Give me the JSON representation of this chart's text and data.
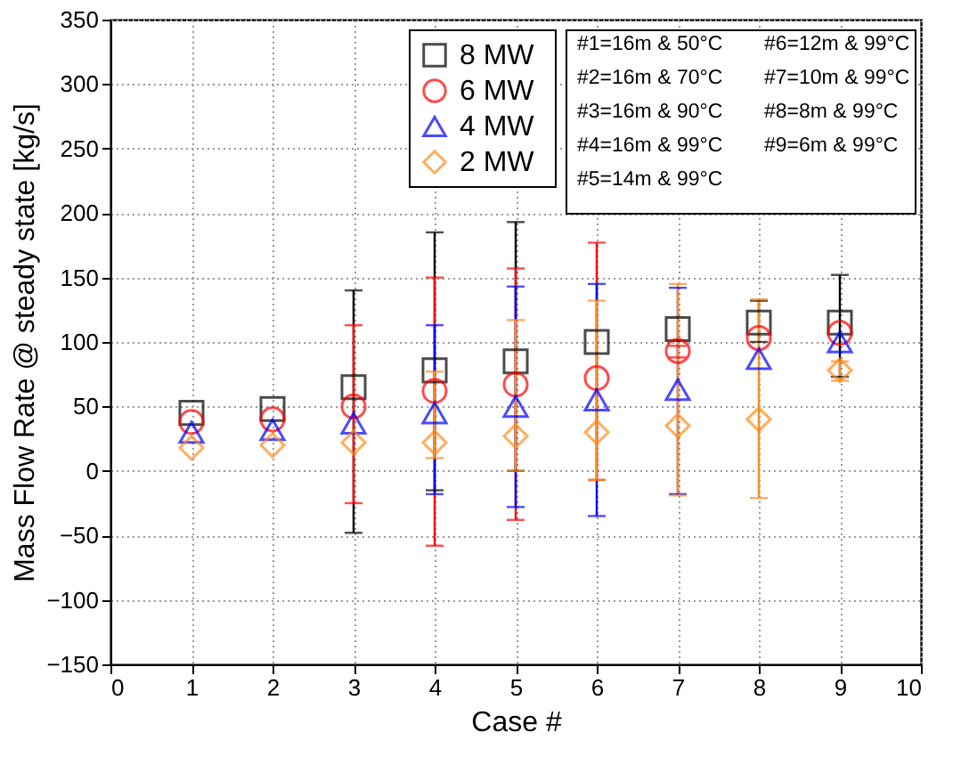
{
  "chart_data": {
    "type": "scatter",
    "xlabel": "Case #",
    "ylabel": "Mass Flow Rate @ steady state [kg/s]",
    "x": [
      1,
      2,
      3,
      4,
      5,
      6,
      7,
      8,
      9
    ],
    "xlim": [
      0,
      10
    ],
    "xticks": [
      0,
      1,
      2,
      3,
      4,
      5,
      6,
      7,
      8,
      9,
      10
    ],
    "ylim": [
      -150,
      350
    ],
    "yticks": [
      -150,
      -100,
      -50,
      0,
      50,
      100,
      150,
      200,
      250,
      300,
      350
    ],
    "grid": true,
    "legend": "top",
    "series": [
      {
        "name": "8 MW",
        "color": "#000000",
        "marker": "square",
        "values": [
          45,
          48,
          65,
          78,
          85,
          100,
          110,
          115,
          115
        ],
        "errors": [
          null,
          null,
          [
            -48,
            140
          ],
          [
            -15,
            185
          ],
          [
            0,
            193
          ],
          null,
          null,
          [
            100,
            132
          ],
          [
            73,
            152
          ]
        ]
      },
      {
        "name": "6 MW",
        "color": "#ff0000",
        "marker": "circle",
        "values": [
          38,
          40,
          50,
          62,
          67,
          72,
          93,
          103,
          107
        ],
        "errors": [
          null,
          null,
          [
            -25,
            113
          ],
          [
            -58,
            150
          ],
          [
            -38,
            157
          ],
          [
            -7,
            177
          ],
          [
            88,
            97
          ],
          null,
          null
        ]
      },
      {
        "name": "4 MW",
        "color": "#0000ff",
        "marker": "triangle",
        "values": [
          30,
          32,
          37,
          45,
          50,
          55,
          63,
          87,
          100
        ],
        "errors": [
          null,
          null,
          null,
          [
            -18,
            113
          ],
          [
            -28,
            143
          ],
          [
            -35,
            145
          ],
          [
            -18,
            142
          ],
          null,
          null
        ]
      },
      {
        "name": "2 MW",
        "color": "#ff8c1a",
        "marker": "diamond",
        "values": [
          18,
          20,
          22,
          22,
          27,
          30,
          35,
          40,
          78
        ],
        "errors": [
          null,
          null,
          null,
          [
            10,
            77
          ],
          [
            0,
            117
          ],
          [
            -7,
            132
          ],
          [
            -19,
            145
          ],
          [
            -21,
            133
          ],
          [
            70,
            85
          ]
        ]
      }
    ],
    "annotations": [
      "#1=16m & 50°C",
      "#2=16m & 70°C",
      "#3=16m & 90°C",
      "#4=16m & 99°C",
      "#5=14m & 99°C",
      "#6=12m & 99°C",
      "#7=10m & 99°C",
      "#8=8m & 99°C",
      "#9=6m & 99°C"
    ]
  }
}
